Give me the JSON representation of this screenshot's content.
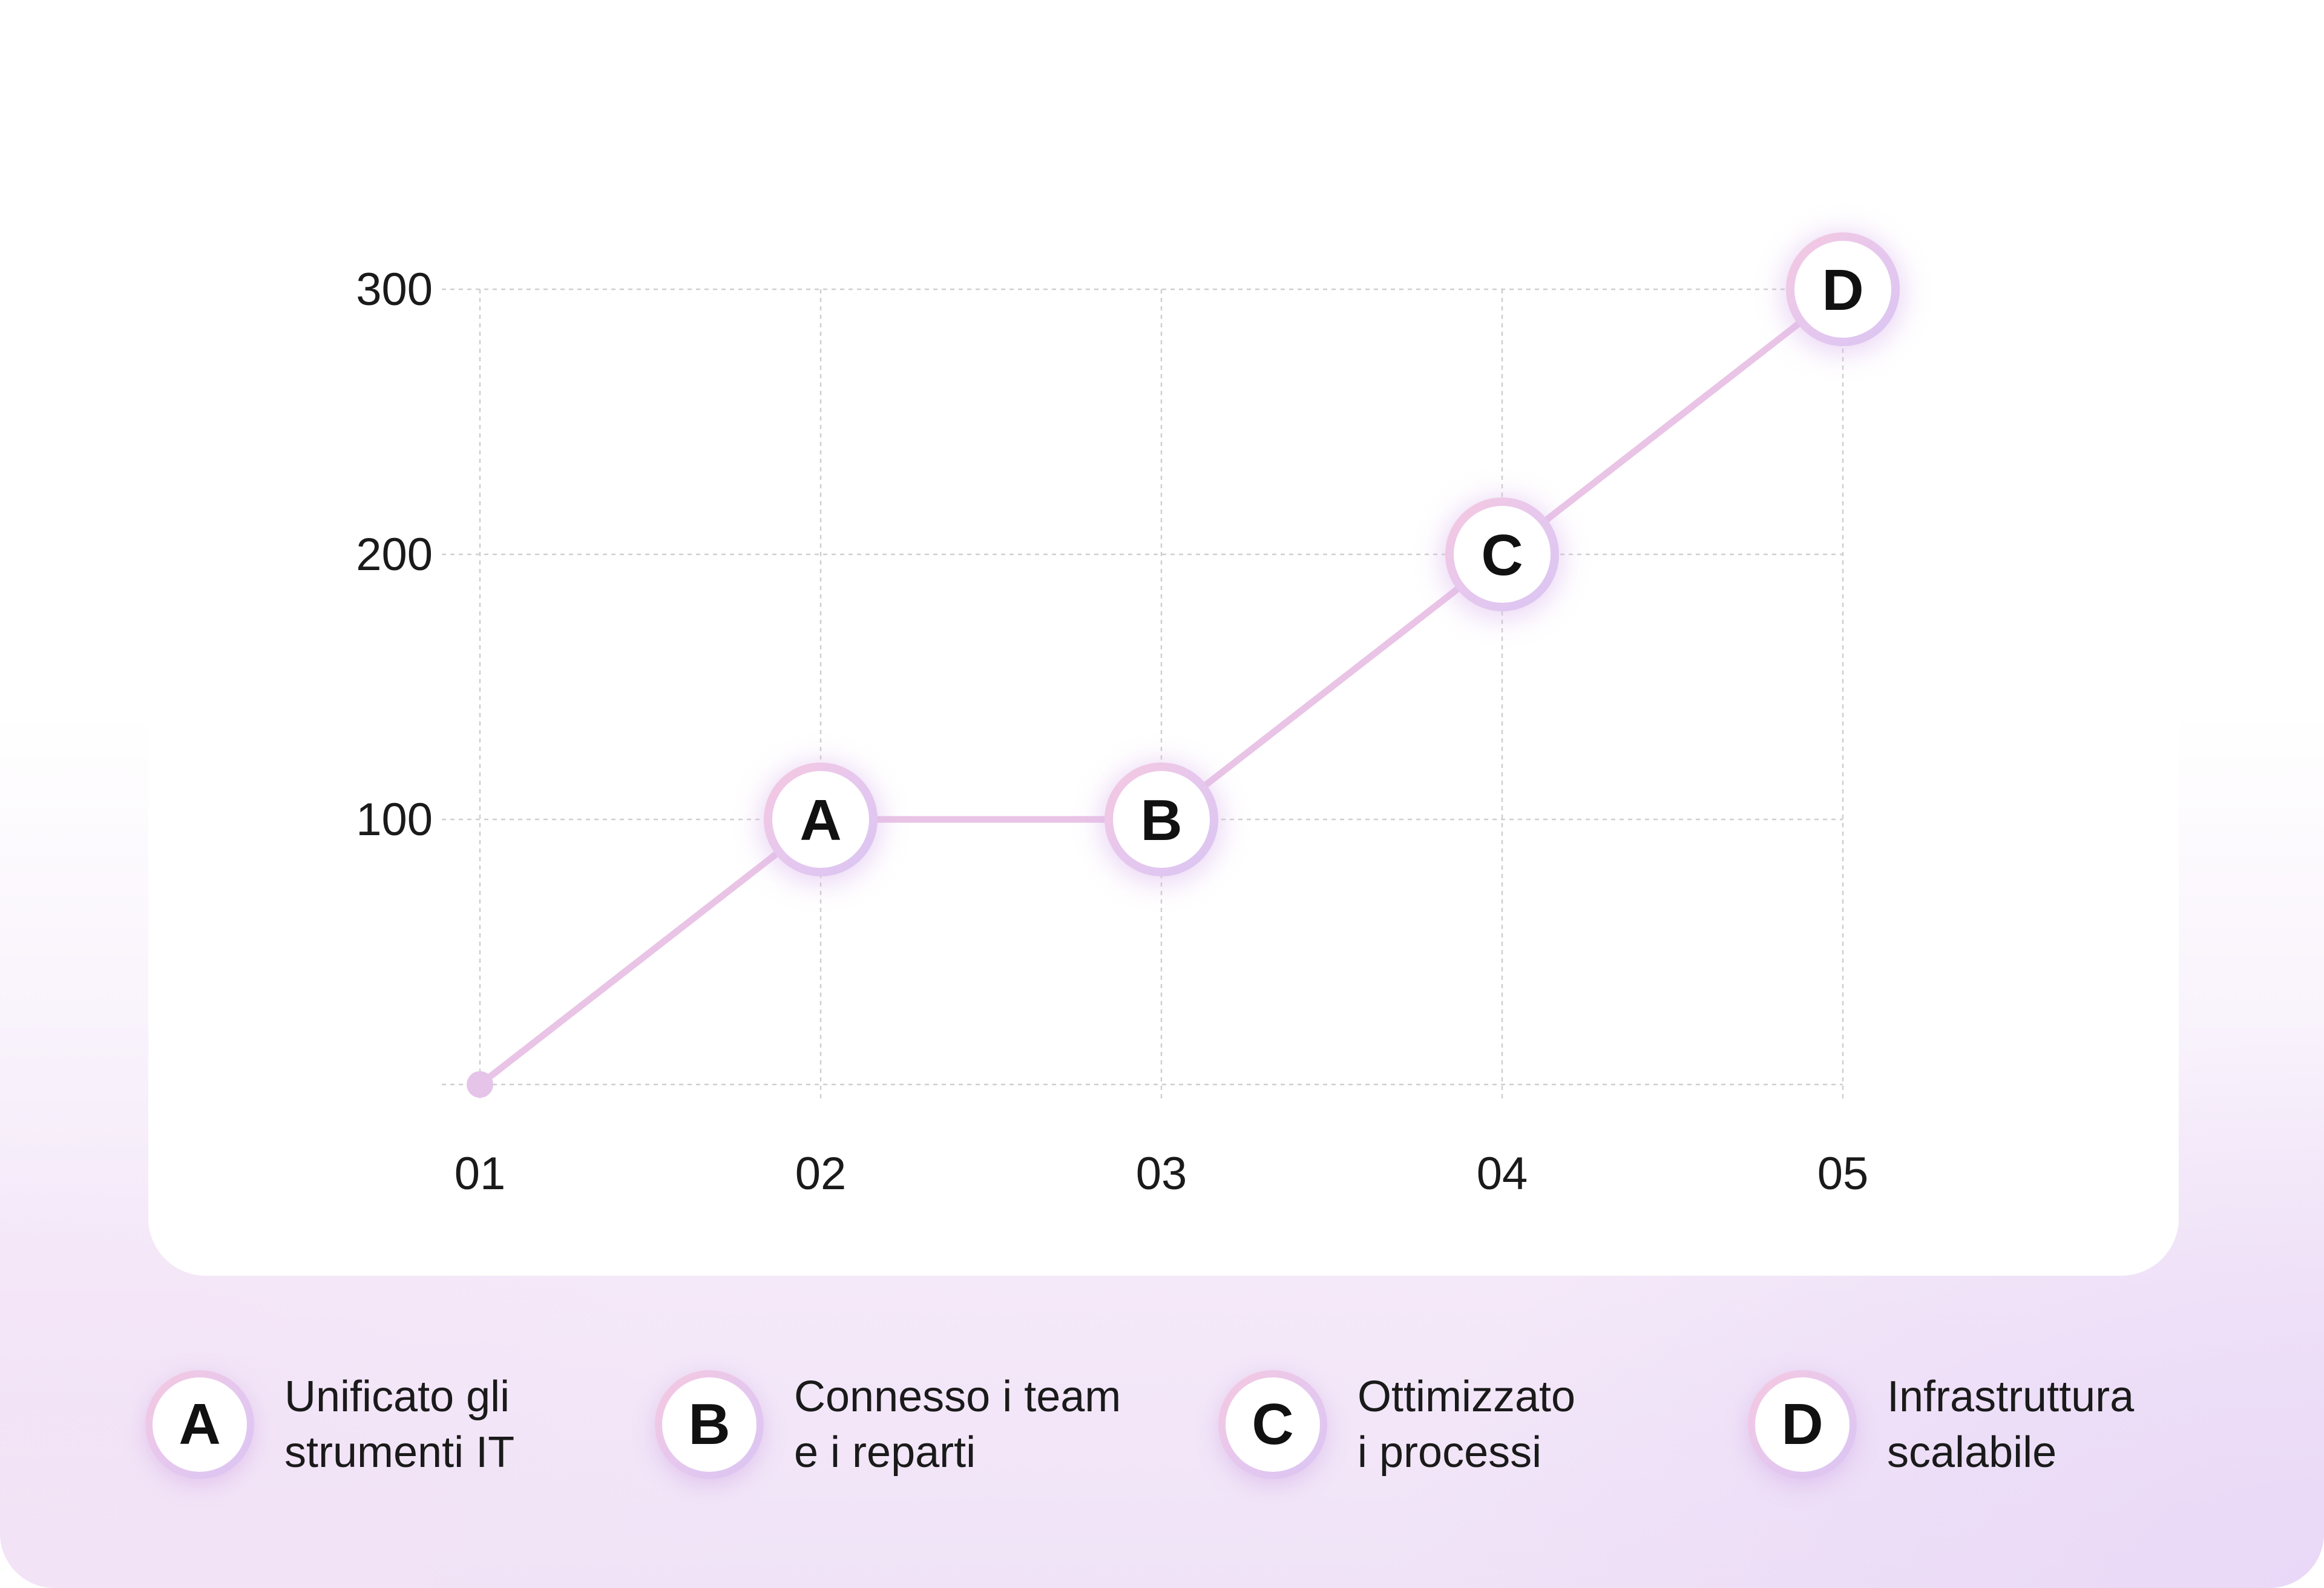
{
  "chart_data": {
    "type": "line",
    "x": [
      "01",
      "02",
      "03",
      "04",
      "05"
    ],
    "y_ticks": [
      "100",
      "200",
      "300"
    ],
    "ylim": [
      0,
      300
    ],
    "grid": true,
    "series": [
      {
        "values": [
          0,
          100,
          100,
          200,
          300
        ],
        "markers": [
          "",
          "A",
          "B",
          "C",
          "D"
        ]
      }
    ],
    "colors": {
      "line": "#e9c4e6",
      "marker_ring_start": "#f6c9df",
      "marker_ring_end": "#d9c6f3"
    }
  },
  "legend": {
    "items": [
      {
        "letter": "A",
        "line1": "Unificato gli",
        "line2": "strumenti IT"
      },
      {
        "letter": "B",
        "line1": "Connesso i team",
        "line2": "e i reparti"
      },
      {
        "letter": "C",
        "line1": "Ottimizzato",
        "line2": "i processi"
      },
      {
        "letter": "D",
        "line1": "Infrastruttura",
        "line2": "scalabile"
      }
    ]
  }
}
